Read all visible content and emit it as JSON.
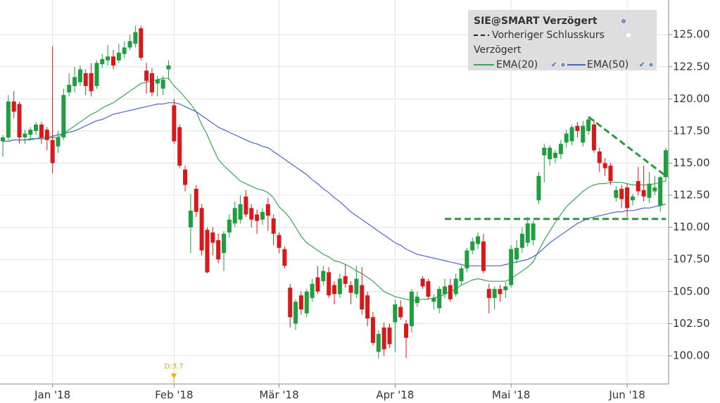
{
  "chart_data": {
    "type": "candlestick",
    "legend_title": "SIE@SMART Verzögert",
    "legend_prev_close": "Vorheriger Schlusskurs",
    "legend_subtitle": "Verzögert",
    "dividend_label": "D:3.7",
    "grid": true,
    "categories": [
      null,
      null,
      null,
      null,
      null,
      null,
      null,
      null,
      null,
      "Jan '18",
      null,
      null,
      null,
      null,
      null,
      null,
      null,
      null,
      null,
      null,
      null,
      null,
      null,
      null,
      null,
      null,
      null,
      null,
      null,
      null,
      null,
      "Feb '18",
      null,
      null,
      null,
      null,
      null,
      null,
      null,
      null,
      null,
      null,
      null,
      null,
      null,
      null,
      null,
      null,
      null,
      null,
      "Mär '18",
      null,
      null,
      null,
      null,
      null,
      null,
      null,
      null,
      null,
      null,
      null,
      null,
      null,
      null,
      null,
      null,
      null,
      null,
      null,
      null,
      "Apr '18",
      null,
      null,
      null,
      null,
      null,
      null,
      null,
      null,
      null,
      null,
      null,
      null,
      null,
      null,
      null,
      null,
      null,
      null,
      null,
      null,
      "Mai '18",
      null,
      null,
      null,
      null,
      null,
      null,
      null,
      null,
      null,
      null,
      null,
      null,
      null,
      null,
      null,
      null,
      null,
      null,
      null,
      null,
      "Jun '18",
      null,
      null,
      null,
      null,
      null,
      null,
      null
    ],
    "ohlc": {
      "up_color": "#1e9e3e",
      "down_color": "#d7191c",
      "open": [
        116.7,
        117.0,
        119.8,
        119.6,
        117.0,
        117.2,
        117.5,
        118.0,
        117.6,
        116.8,
        116.3,
        117.0,
        120.5,
        121.0,
        121.3,
        122.0,
        122.0,
        121.0,
        122.7,
        123.0,
        123.3,
        123.0,
        123.5,
        124.0,
        124.3,
        125.5,
        122.2,
        122.0,
        121.2,
        120.8,
        122.3,
        119.5,
        117.8,
        114.5,
        110.0,
        113.0,
        111.5,
        109.8,
        109.6,
        109.0,
        108.0,
        109.6,
        110.3,
        110.6,
        112.4,
        111.5,
        111.0,
        110.6,
        111.8,
        110.7,
        109.4,
        108.3,
        105.3,
        102.5,
        104.7,
        103.3,
        104.5,
        106.1,
        105.8,
        106.5,
        105.5,
        104.8,
        106.2,
        105.5,
        104.8,
        105.5,
        104.7,
        103.0,
        100.3,
        102.2,
        102.2,
        102.6,
        103.8,
        102.5,
        102.3,
        104.1,
        106.0,
        105.8,
        104.2,
        103.7,
        104.8,
        105.5,
        104.8,
        105.8,
        106.8,
        108.2,
        108.7,
        108.9,
        105.2,
        104.5,
        105.2,
        105.1,
        105.5,
        107.5,
        108.4,
        108.8,
        109.0,
        112.1,
        115.6,
        115.3,
        115.4,
        115.7,
        116.6,
        116.7,
        117.9,
        116.6,
        117.5,
        118.0,
        115.9,
        115.0,
        114.8,
        112.3,
        113.0,
        113.1,
        112.1,
        113.6,
        112.9,
        112.3,
        112.8,
        111.7,
        113.9
      ],
      "high": [
        117.2,
        120.3,
        120.6,
        119.8,
        117.6,
        117.8,
        118.2,
        118.2,
        117.8,
        124.1,
        117.5,
        120.8,
        122.0,
        122.5,
        122.6,
        122.3,
        122.8,
        123.0,
        123.5,
        124.2,
        123.8,
        124.3,
        124.5,
        125.0,
        125.7,
        125.7,
        122.8,
        122.4,
        121.8,
        121.8,
        123.0,
        120.0,
        118.0,
        114.8,
        112.6,
        113.3,
        111.8,
        110.0,
        110.0,
        109.5,
        109.7,
        111.0,
        112.0,
        112.5,
        112.9,
        111.8,
        111.4,
        111.5,
        112.3,
        111.0,
        109.6,
        108.5,
        105.6,
        104.4,
        105.0,
        105.2,
        106.0,
        107.0,
        107.0,
        106.9,
        105.8,
        106.4,
        107.1,
        105.8,
        107.0,
        106.9,
        105.0,
        103.4,
        102.0,
        102.6,
        102.5,
        104.4,
        104.3,
        102.8,
        105.2,
        105.0,
        106.2,
        106.0,
        104.8,
        105.4,
        106.0,
        106.0,
        106.4,
        107.0,
        108.4,
        109.2,
        109.6,
        109.5,
        105.6,
        105.4,
        105.5,
        105.7,
        108.6,
        109.0,
        110.0,
        110.8,
        110.5,
        114.3,
        116.5,
        116.4,
        116.0,
        116.8,
        117.6,
        118.0,
        118.2,
        118.3,
        118.6,
        118.4,
        116.2,
        115.4,
        115.0,
        113.2,
        113.3,
        113.4,
        112.6,
        114.7,
        114.8,
        114.3,
        114.0,
        114.0,
        116.2
      ],
      "low": [
        115.5,
        116.8,
        118.5,
        116.5,
        116.5,
        116.8,
        117.2,
        116.5,
        116.0,
        114.2,
        115.8,
        116.8,
        120.2,
        120.5,
        121.0,
        120.3,
        120.2,
        120.8,
        122.4,
        122.6,
        122.3,
        122.8,
        123.2,
        123.8,
        124.0,
        123.0,
        120.4,
        120.2,
        120.2,
        120.3,
        121.5,
        116.5,
        114.6,
        112.8,
        108.0,
        110.8,
        107.8,
        106.4,
        107.8,
        107.2,
        106.6,
        109.2,
        110.0,
        110.3,
        110.8,
        110.0,
        109.5,
        110.2,
        109.7,
        108.6,
        108.0,
        106.8,
        102.2,
        102.0,
        103.2,
        103.0,
        104.2,
        104.8,
        105.5,
        104.5,
        104.0,
        104.5,
        105.3,
        104.0,
        104.5,
        103.2,
        102.3,
        100.8,
        99.8,
        100.0,
        100.6,
        100.3,
        102.8,
        99.8,
        101.8,
        103.8,
        105.2,
        104.4,
        103.6,
        103.3,
        104.5,
        104.2,
        104.6,
        105.5,
        106.5,
        107.9,
        108.3,
        106.4,
        103.3,
        103.6,
        104.2,
        104.5,
        105.3,
        107.2,
        108.0,
        108.5,
        108.6,
        111.8,
        113.5,
        114.8,
        115.0,
        115.3,
        116.2,
        116.4,
        117.0,
        116.3,
        117.2,
        115.8,
        114.3,
        114.0,
        113.3,
        112.0,
        111.5,
        110.8,
        111.7,
        112.5,
        112.0,
        111.9,
        112.5,
        111.2,
        113.6
      ],
      "close": [
        117.0,
        119.8,
        119.0,
        117.0,
        117.3,
        117.6,
        118.0,
        117.0,
        116.8,
        115.0,
        117.0,
        120.3,
        121.1,
        121.7,
        122.3,
        121.0,
        120.6,
        122.8,
        123.1,
        123.3,
        122.6,
        123.6,
        124.0,
        124.5,
        125.2,
        123.2,
        121.4,
        120.5,
        121.5,
        121.5,
        122.6,
        116.7,
        114.8,
        113.3,
        111.3,
        111.2,
        108.2,
        106.5,
        108.8,
        107.5,
        109.5,
        110.6,
        111.5,
        111.8,
        111.0,
        110.6,
        110.5,
        111.2,
        110.9,
        109.5,
        108.4,
        107.0,
        103.0,
        104.2,
        103.6,
        105.0,
        105.6,
        105.0,
        106.6,
        104.7,
        104.8,
        106.0,
        105.6,
        104.9,
        106.0,
        103.6,
        102.9,
        101.0,
        101.7,
        100.5,
        100.9,
        104.0,
        103.0,
        101.4,
        105.0,
        104.6,
        105.4,
        104.6,
        104.5,
        105.2,
        105.4,
        104.4,
        106.0,
        106.8,
        108.2,
        108.9,
        109.3,
        106.6,
        104.5,
        105.2,
        104.8,
        105.4,
        108.3,
        108.4,
        109.5,
        110.3,
        110.3,
        114.0,
        116.2,
        116.2,
        115.8,
        116.5,
        117.3,
        117.8,
        117.5,
        117.9,
        118.4,
        116.0,
        115.0,
        114.6,
        113.6,
        112.9,
        112.2,
        111.5,
        112.4,
        112.8,
        112.4,
        113.4,
        113.1,
        113.9,
        116.0
      ]
    },
    "series": [
      {
        "name": "EMA(20)",
        "color": "#3aa655",
        "values": [
          116.7,
          116.7,
          116.8,
          116.8,
          116.8,
          116.8,
          116.9,
          116.9,
          116.9,
          117.0,
          117.0,
          117.3,
          117.6,
          117.9,
          118.2,
          118.5,
          118.8,
          119.0,
          119.3,
          119.5,
          119.7,
          120.0,
          120.3,
          120.6,
          120.9,
          121.2,
          121.3,
          121.4,
          121.5,
          121.6,
          121.6,
          121.0,
          120.6,
          120.1,
          119.6,
          119.0,
          118.0,
          117.2,
          116.2,
          115.3,
          114.8,
          114.4,
          114.0,
          113.6,
          113.4,
          113.2,
          113.0,
          112.9,
          112.7,
          112.3,
          111.6,
          111.2,
          110.7,
          110.0,
          109.3,
          108.8,
          108.5,
          108.2,
          107.9,
          107.7,
          107.4,
          107.3,
          107.1,
          106.9,
          106.6,
          106.4,
          106.1,
          105.8,
          105.4,
          105.0,
          104.8,
          104.6,
          104.5,
          104.4,
          104.3,
          104.3,
          104.4,
          104.4,
          104.5,
          104.6,
          104.8,
          105.0,
          105.2,
          105.5,
          105.7,
          105.9,
          106.0,
          105.9,
          105.8,
          105.8,
          105.8,
          105.8,
          106.0,
          106.3,
          106.6,
          106.9,
          107.3,
          108.2,
          109.0,
          109.7,
          110.4,
          111.0,
          111.6,
          112.0,
          112.4,
          112.8,
          113.1,
          113.3,
          113.4,
          113.4,
          113.5,
          113.5,
          113.5,
          113.4,
          113.3,
          113.3,
          113.3,
          113.3,
          113.4,
          113.5,
          113.6
        ]
      },
      {
        "name": "EMA(50)",
        "color": "#4a66c9",
        "values": [
          116.7,
          116.7,
          116.8,
          116.8,
          116.8,
          116.9,
          116.9,
          117.0,
          117.0,
          117.1,
          117.2,
          117.3,
          117.4,
          117.5,
          117.7,
          117.9,
          118.1,
          118.3,
          118.4,
          118.6,
          118.8,
          118.9,
          119.0,
          119.1,
          119.2,
          119.3,
          119.4,
          119.5,
          119.6,
          119.6,
          119.7,
          119.7,
          119.6,
          119.4,
          119.2,
          119.0,
          118.7,
          118.4,
          118.1,
          117.8,
          117.6,
          117.4,
          117.2,
          117.0,
          116.8,
          116.6,
          116.5,
          116.3,
          116.2,
          115.9,
          115.6,
          115.3,
          115.0,
          114.7,
          114.4,
          114.1,
          113.7,
          113.4,
          113.0,
          112.7,
          112.3,
          112.0,
          111.6,
          111.2,
          110.9,
          110.6,
          110.3,
          110.0,
          109.7,
          109.4,
          109.1,
          108.8,
          108.6,
          108.3,
          108.1,
          107.9,
          107.8,
          107.7,
          107.6,
          107.5,
          107.4,
          107.3,
          107.2,
          107.1,
          107.0,
          107.0,
          107.0,
          107.0,
          107.0,
          107.0,
          107.0,
          107.1,
          107.2,
          107.3,
          107.4,
          107.5,
          107.7,
          108.0,
          108.4,
          108.8,
          109.1,
          109.4,
          109.7,
          110.0,
          110.3,
          110.5,
          110.7,
          110.8,
          110.9,
          111.0,
          111.1,
          111.2,
          111.2,
          111.3,
          111.3,
          111.4,
          111.5,
          111.5,
          111.6,
          111.7,
          111.8
        ]
      }
    ],
    "trendlines": [
      {
        "color": "#2a9a3f",
        "x": [
          80,
          120
        ],
        "y": [
          110.65,
          110.65
        ]
      },
      {
        "color": "#2a9a3f",
        "x": [
          106,
          120
        ],
        "y": [
          118.6,
          114.0
        ]
      }
    ],
    "ylim": [
      97.8,
      127.7
    ],
    "yticks": [
      {
        "value": 100,
        "label": "100.00"
      },
      {
        "value": 102.5,
        "label": "102.50"
      },
      {
        "value": 105,
        "label": "105.00"
      },
      {
        "value": 107.5,
        "label": "107.50"
      },
      {
        "value": 110,
        "label": "110.00"
      },
      {
        "value": 112.5,
        "label": "112.50"
      },
      {
        "value": 115,
        "label": "115.00"
      },
      {
        "value": 117.5,
        "label": "117.50"
      },
      {
        "value": 120,
        "label": "120.00"
      },
      {
        "value": 122.5,
        "label": "122.50"
      },
      {
        "value": 125,
        "label": "125.00"
      }
    ]
  }
}
